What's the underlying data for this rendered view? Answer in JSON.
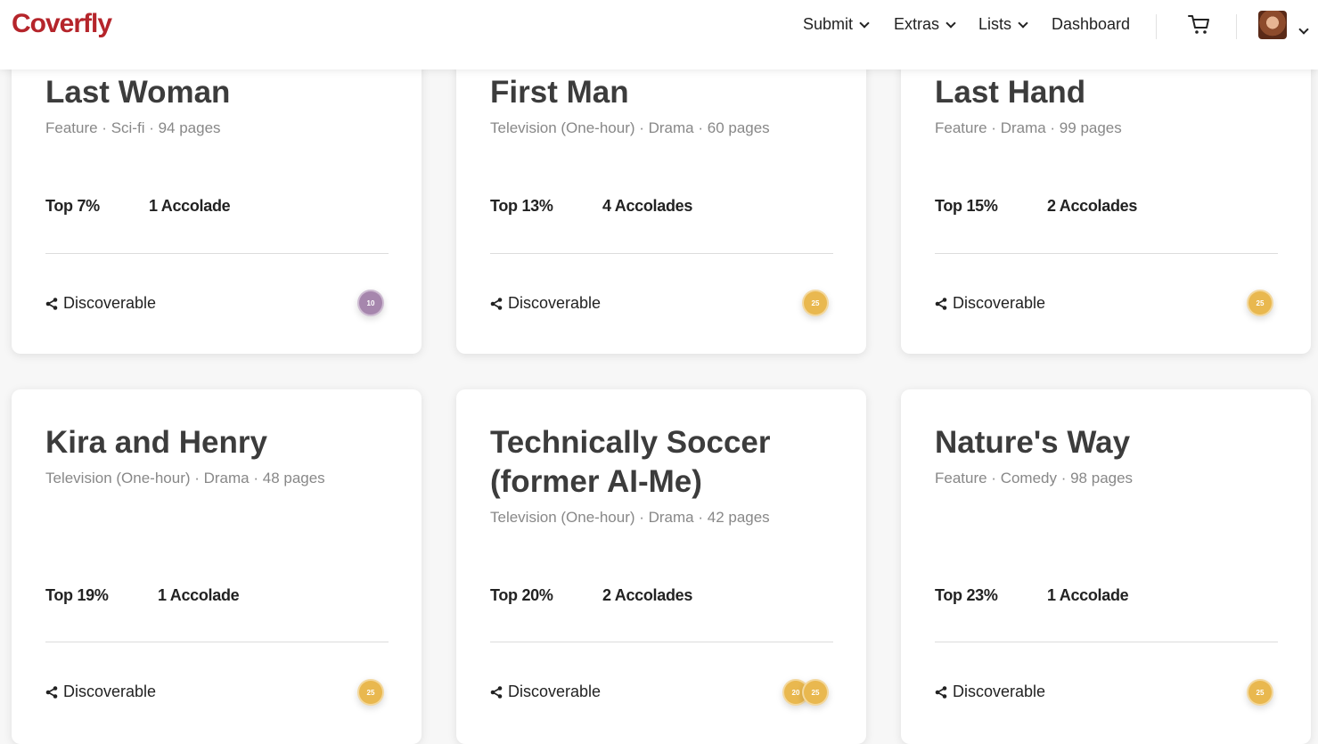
{
  "nav": {
    "logo": "Coverfly",
    "submit": "Submit",
    "extras": "Extras",
    "lists": "Lists",
    "dashboard": "Dashboard",
    "cart_icon": "cart-icon",
    "avatar_icon": "user-avatar"
  },
  "colors": {
    "brand": "#b5252b",
    "badge_purple": "#a686ad",
    "badge_gold": "#e9b84f"
  },
  "cards": [
    {
      "title": "Last Woman",
      "meta": "Feature · Sci-fi · 94 pages",
      "top": "Top 7%",
      "accolades": "1 Accolade",
      "status": "Discoverable",
      "badges": [
        "10"
      ]
    },
    {
      "title": "First Man",
      "meta": "Television (One-hour) · Drama · 60 pages",
      "top": "Top 13%",
      "accolades": "4 Accolades",
      "status": "Discoverable",
      "badges": [
        "25"
      ]
    },
    {
      "title": "Last Hand",
      "meta": "Feature · Drama · 99 pages",
      "top": "Top 15%",
      "accolades": "2 Accolades",
      "status": "Discoverable",
      "badges": [
        "25"
      ]
    },
    {
      "title": "Kira and Henry",
      "meta": "Television (One-hour) · Drama · 48 pages",
      "top": "Top 19%",
      "accolades": "1 Accolade",
      "status": "Discoverable",
      "badges": [
        "25"
      ]
    },
    {
      "title": "Technically Soccer (former AI-Me)",
      "meta": "Television (One-hour) · Drama · 42 pages",
      "top": "Top 20%",
      "accolades": "2 Accolades",
      "status": "Discoverable",
      "badges": [
        "20",
        "25"
      ]
    },
    {
      "title": "Nature's Way",
      "meta": "Feature · Comedy · 98 pages",
      "top": "Top 23%",
      "accolades": "1 Accolade",
      "status": "Discoverable",
      "badges": [
        "25"
      ]
    }
  ]
}
